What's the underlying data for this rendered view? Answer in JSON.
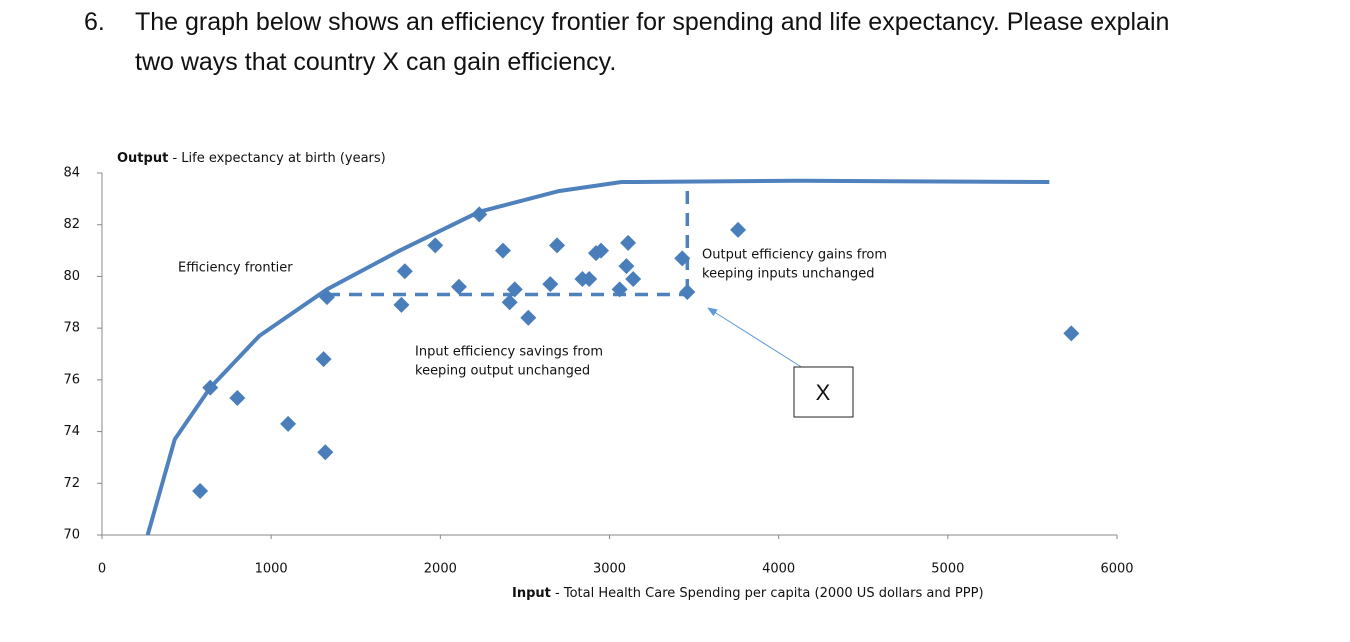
{
  "question": {
    "number": "6.",
    "lines": [
      "The graph below shows an efficiency frontier for spending and life expectancy. Please explain",
      "two ways that country X can gain efficiency."
    ]
  },
  "chart_data": {
    "type": "scatter",
    "y_label_bold": "Output",
    "y_label": "- Life expectancy at birth (years)",
    "x_label_bold": "Input",
    "x_label": "- Total Health Care Spending per capita (2000  US dollars and PPP)",
    "xlim": [
      0,
      6000
    ],
    "xticks": [
      0,
      1000,
      2000,
      3000,
      4000,
      5000,
      6000
    ],
    "ylim": [
      70,
      84
    ],
    "yticks": [
      70,
      72,
      74,
      76,
      78,
      80,
      82,
      84
    ],
    "color": "#4a7ebb",
    "x": [
      580,
      640,
      800,
      1100,
      1310,
      1320,
      1330,
      1770,
      1790,
      1970,
      2110,
      2230,
      2370,
      2410,
      2440,
      2520,
      2650,
      2690,
      2840,
      2880,
      2920,
      2950,
      3060,
      3110,
      3100,
      3140,
      3430,
      3460,
      3760,
      5730
    ],
    "values": [
      71.7,
      75.7,
      75.3,
      74.3,
      76.8,
      73.2,
      79.2,
      78.9,
      80.2,
      81.2,
      79.6,
      82.4,
      81.0,
      79.0,
      79.5,
      78.4,
      79.7,
      81.2,
      79.9,
      79.9,
      80.9,
      81.0,
      79.5,
      81.3,
      80.4,
      79.9,
      80.7,
      79.4,
      81.8,
      77.8
    ],
    "frontier": {
      "color": "#4f81bd",
      "x": [
        270,
        430,
        640,
        930,
        1330,
        1760,
        2230,
        2700,
        3070,
        4120,
        5600
      ],
      "values": [
        70,
        73.7,
        75.7,
        77.7,
        79.5,
        81.0,
        82.5,
        83.3,
        83.65,
        83.7,
        83.65
      ]
    },
    "input_gap": {
      "x": [
        1330,
        3460
      ],
      "values": [
        79.3,
        79.3
      ]
    },
    "output_gap": {
      "x": [
        3460,
        3460
      ],
      "values": [
        79.4,
        83.65
      ]
    },
    "annotations": {
      "frontier": "Efficiency frontier",
      "output": [
        "Output efficiency gains from",
        "keeping inputs unchanged"
      ],
      "input": [
        "Input efficiency savings from",
        "keeping output unchanged"
      ],
      "point": "X"
    }
  }
}
